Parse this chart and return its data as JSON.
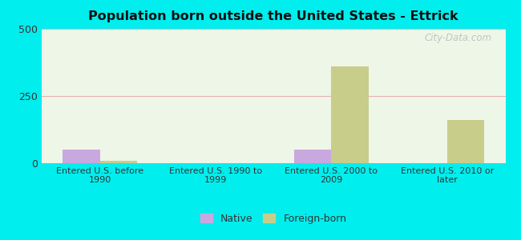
{
  "title": "Population born outside the United States - Ettrick",
  "categories": [
    "Entered U.S. before\n1990",
    "Entered U.S. 1990 to\n1999",
    "Entered U.S. 2000 to\n2009",
    "Entered U.S. 2010 or\nlater"
  ],
  "native_values": [
    50,
    0,
    50,
    0
  ],
  "foreign_values": [
    10,
    0,
    360,
    160
  ],
  "native_color": "#c9a8e0",
  "foreign_color": "#c8cd8a",
  "plot_bg_top": "#f0f8ec",
  "plot_bg_bottom": "#e0f0e0",
  "outer_background": "#00eeee",
  "ylim": [
    0,
    500
  ],
  "yticks": [
    0,
    250,
    500
  ],
  "gridline_color": "#e8b0b0",
  "watermark": "City-Data.com",
  "legend_native": "Native",
  "legend_foreign": "Foreign-born",
  "bar_width": 0.32
}
